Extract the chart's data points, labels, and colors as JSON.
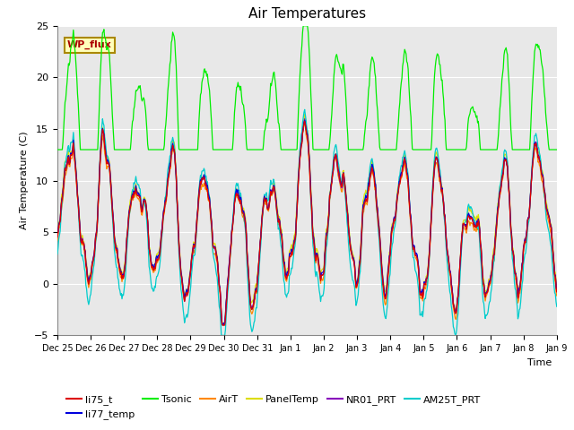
{
  "title": "Air Temperatures",
  "ylabel": "Air Temperature (C)",
  "xlabel": "Time",
  "ylim": [
    -5,
    25
  ],
  "yticks": [
    -5,
    0,
    5,
    10,
    15,
    20,
    25
  ],
  "x_tick_labels": [
    "Dec 25",
    "Dec 26",
    "Dec 27",
    "Dec 28",
    "Dec 29",
    "Dec 30",
    "Dec 31",
    "Jan 1",
    "Jan 2",
    "Jan 3",
    "Jan 4",
    "Jan 5",
    "Jan 6",
    "Jan 7",
    "Jan 8",
    "Jan 9"
  ],
  "series_colors": {
    "li75_t": "#dd0000",
    "li77_temp": "#0000dd",
    "Tsonic": "#00ee00",
    "AirT": "#ff8800",
    "PanelTemp": "#dddd00",
    "NR01_PRT": "#8800bb",
    "AM25T_PRT": "#00cccc"
  },
  "background_color": "#e8e8e8",
  "annotation_text": "WP_flux",
  "annotation_color": "#aa0000",
  "annotation_bg": "#ffffbb",
  "annotation_border": "#aa8800"
}
